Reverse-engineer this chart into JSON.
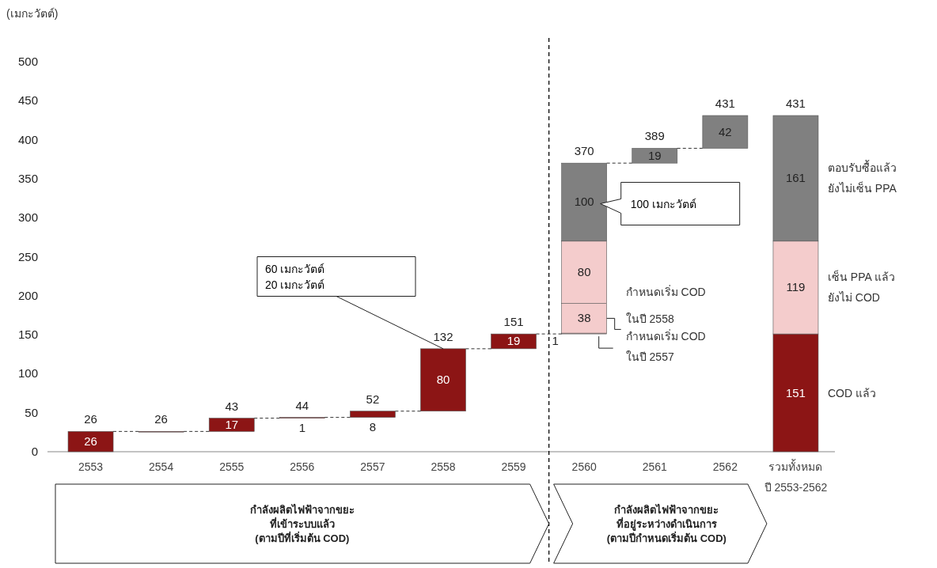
{
  "chart_data": {
    "type": "bar",
    "ylabel": "(เมกะวัตต์)",
    "categories": [
      "2553",
      "2554",
      "2555",
      "2556",
      "2557",
      "2558",
      "2559",
      "2560",
      "2561",
      "2562",
      "รวมทั้งหมด\nปี 2553-2562"
    ],
    "ylim": [
      0,
      500
    ],
    "yticks": [
      0,
      50,
      100,
      150,
      200,
      250,
      300,
      350,
      400,
      450,
      500
    ],
    "grid": false,
    "series": [
      {
        "name": "COD แล้ว",
        "color": "#8c1515",
        "values": [
          26,
          0,
          17,
          1,
          8,
          80,
          19,
          null,
          null,
          null,
          151
        ],
        "base": [
          0,
          26,
          26,
          43,
          44,
          52,
          132,
          null,
          null,
          null,
          0
        ],
        "value_labels": [
          "26",
          null,
          "17",
          "1",
          "8",
          "80",
          "19",
          null,
          null,
          null,
          "151"
        ]
      },
      {
        "name": "เซ็น PPA แล้ว\nยังไม่ COD",
        "color": "#f4cccc",
        "values": [
          null,
          null,
          null,
          null,
          null,
          null,
          null,
          1,
          null,
          null,
          119
        ],
        "base": [
          null,
          null,
          null,
          null,
          null,
          null,
          null,
          151,
          null,
          null,
          151
        ],
        "value_labels": [
          null,
          null,
          null,
          null,
          null,
          null,
          null,
          "1",
          null,
          null,
          "119"
        ]
      },
      {
        "color": "#f4cccc",
        "values": [
          null,
          null,
          null,
          null,
          null,
          null,
          null,
          38,
          null,
          null,
          null
        ],
        "base": [
          null,
          null,
          null,
          null,
          null,
          null,
          null,
          152,
          null,
          null,
          null
        ],
        "value_labels": [
          null,
          null,
          null,
          null,
          null,
          null,
          null,
          "38",
          null,
          null,
          null
        ]
      },
      {
        "color": "#f4cccc",
        "values": [
          null,
          null,
          null,
          null,
          null,
          null,
          null,
          80,
          null,
          null,
          null
        ],
        "base": [
          null,
          null,
          null,
          null,
          null,
          null,
          null,
          190,
          null,
          null,
          null
        ],
        "value_labels": [
          null,
          null,
          null,
          null,
          null,
          null,
          null,
          "80",
          null,
          null,
          null
        ]
      },
      {
        "name": "ตอบรับซื้อแล้ว\nยังไม่เซ็น PPA",
        "color": "#808080",
        "values": [
          null,
          null,
          null,
          null,
          null,
          null,
          null,
          100,
          19,
          42,
          161
        ],
        "base": [
          null,
          null,
          null,
          null,
          null,
          null,
          null,
          270,
          370,
          389,
          270
        ],
        "value_labels": [
          null,
          null,
          null,
          null,
          null,
          null,
          null,
          "100",
          "19",
          "42",
          "161"
        ]
      }
    ],
    "annotations": [
      {
        "text": "26",
        "x": "2553",
        "y": 26
      },
      {
        "text": "26",
        "x": "2554",
        "y": 26
      },
      {
        "text": "43",
        "x": "2555",
        "y": 43
      },
      {
        "text": "44",
        "x": "2556",
        "y": 44
      },
      {
        "text": "52",
        "x": "2557",
        "y": 52
      },
      {
        "text": "132",
        "x": "2558",
        "y": 132
      },
      {
        "text": "151",
        "x": "2559",
        "y": 151
      },
      {
        "text": "370",
        "x": "2560",
        "y": 370
      },
      {
        "text": "389",
        "x": "2561",
        "y": 389
      },
      {
        "text": "431",
        "x": "2562",
        "y": 431
      },
      {
        "text": "431",
        "x": "รวมทั้งหมด\nปี 2553-2562",
        "y": 431
      },
      {
        "text": "60 เมกะวัตต์\n20 เมกะวัตต์",
        "x": "2558",
        "y": 132
      },
      "100 เมกะวัตต์",
      "กำหนดเริ่ม COD\nในปี 2558",
      "กำหนดเริ่ม COD\nในปี 2557",
      "กำลังผลิตไฟฟ้าจากขยะ\nที่เข้าระบบแล้ว\n(ตามปีที่เริ่มต้น COD)",
      "กำลังผลิตไฟฟ้าจากขยะ\nที่อยู่ระหว่างดำเนินการ\n(ตามปีกำหนดเริ่มต้น COD)"
    ]
  }
}
